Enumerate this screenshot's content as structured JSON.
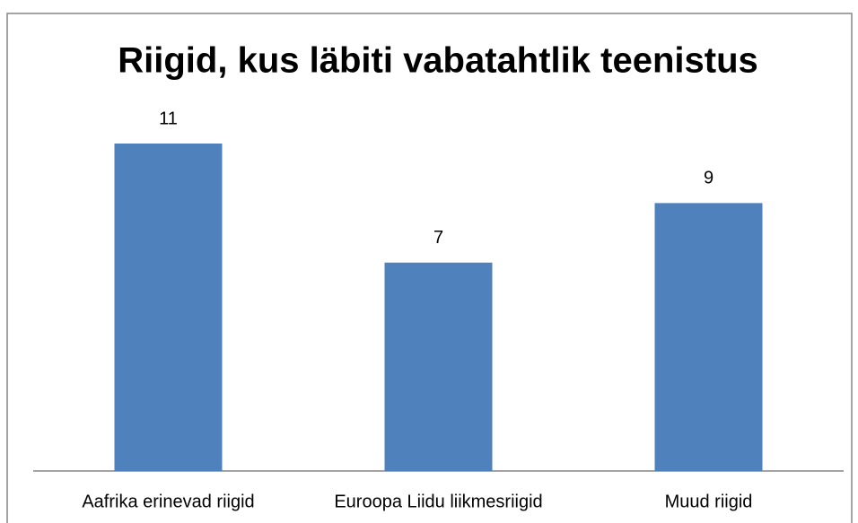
{
  "chart_data": {
    "type": "bar",
    "title": "Riigid, kus läbiti vabatahtlik teenistus",
    "categories": [
      "Aafrika erinevad riigid",
      "Euroopa Liidu liikmesriigid",
      "Muud riigid"
    ],
    "values": [
      11,
      7,
      9
    ],
    "color": "#4f81bd"
  }
}
